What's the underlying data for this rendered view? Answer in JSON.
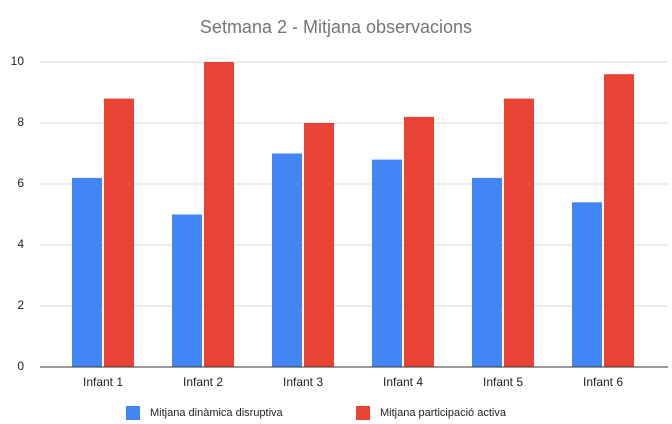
{
  "chart_data": {
    "type": "bar",
    "title": "Setmana 2 - Mitjana observacions",
    "categories": [
      "Infant 1",
      "Infant 2",
      "Infant 3",
      "Infant 4",
      "Infant 5",
      "Infant 6"
    ],
    "series": [
      {
        "name": "Mitjana dinàmica disruptiva",
        "color": "#4285f4",
        "values": [
          6.2,
          5.0,
          7.0,
          6.8,
          6.2,
          5.4
        ]
      },
      {
        "name": "Mitjana participació activa",
        "color": "#ea4335",
        "values": [
          8.8,
          10,
          8.0,
          8.2,
          8.8,
          9.6
        ]
      }
    ],
    "ylim": [
      0,
      10
    ],
    "yticks": [
      0,
      2,
      4,
      6,
      8,
      10
    ],
    "grid": true,
    "legend": "bottom"
  }
}
